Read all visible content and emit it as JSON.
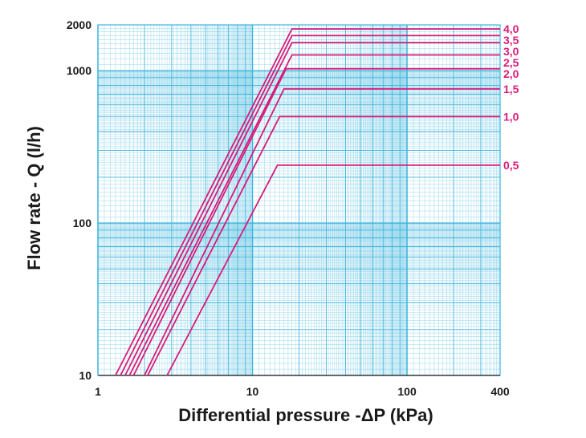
{
  "chart_data": {
    "type": "line",
    "title": "",
    "xlabel": "Differential pressure -ΔP (kPa)",
    "ylabel": "Flow rate - Q (l/h)",
    "x_scale": "log",
    "y_scale": "log",
    "xlim": [
      1,
      400
    ],
    "ylim": [
      10,
      2000
    ],
    "x_ticks": [
      {
        "value": 1,
        "label": "1"
      },
      {
        "value": 10,
        "label": "10"
      },
      {
        "value": 100,
        "label": "100"
      },
      {
        "value": 400,
        "label": "400"
      }
    ],
    "y_ticks": [
      {
        "value": 10,
        "label": "10"
      },
      {
        "value": 100,
        "label": "100"
      },
      {
        "value": 1000,
        "label": "1000"
      },
      {
        "value": 2000,
        "label": "2000"
      }
    ],
    "grid": true,
    "grid_color": "#3db4dc",
    "line_color": "#d81b7a",
    "text_color": "#1a1a1a",
    "series": [
      {
        "name": "4,0",
        "points": [
          [
            1.3,
            10
          ],
          [
            18,
            1880
          ],
          [
            400,
            1880
          ]
        ]
      },
      {
        "name": "3,5",
        "points": [
          [
            1.4,
            10
          ],
          [
            18,
            1700
          ],
          [
            400,
            1700
          ]
        ]
      },
      {
        "name": "3,0",
        "points": [
          [
            1.5,
            10
          ],
          [
            18,
            1530
          ],
          [
            400,
            1530
          ]
        ]
      },
      {
        "name": "2,5",
        "points": [
          [
            1.6,
            10
          ],
          [
            18,
            1270
          ],
          [
            400,
            1270
          ]
        ]
      },
      {
        "name": "2,0",
        "points": [
          [
            1.7,
            10
          ],
          [
            16.5,
            1030
          ],
          [
            400,
            1030
          ]
        ]
      },
      {
        "name": "1,5",
        "points": [
          [
            2.0,
            10
          ],
          [
            16,
            760
          ],
          [
            400,
            760
          ]
        ]
      },
      {
        "name": "1,0",
        "points": [
          [
            2.1,
            10
          ],
          [
            15,
            500
          ],
          [
            400,
            500
          ]
        ]
      },
      {
        "name": "0,5",
        "points": [
          [
            2.8,
            10
          ],
          [
            14.5,
            240
          ],
          [
            400,
            240
          ]
        ]
      }
    ]
  }
}
